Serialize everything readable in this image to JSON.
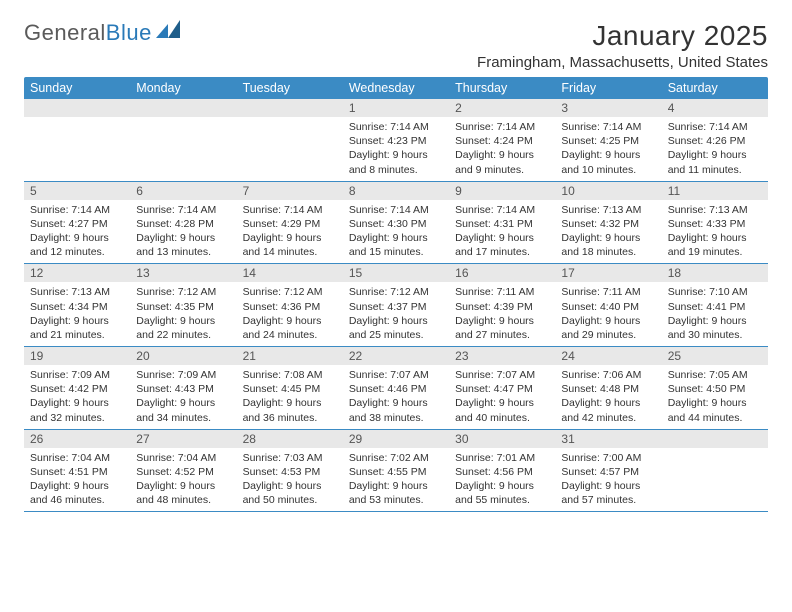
{
  "brand": {
    "part1": "General",
    "part2": "Blue"
  },
  "title": "January 2025",
  "location": "Framingham, Massachusetts, United States",
  "colors": {
    "header_bg": "#3b8bc4",
    "header_fg": "#ffffff",
    "daynum_bg": "#e8e8e8",
    "rule": "#3b8bc4",
    "text": "#333333",
    "logo_gray": "#5a5a5a",
    "logo_blue": "#2a7ab8"
  },
  "day_names": [
    "Sunday",
    "Monday",
    "Tuesday",
    "Wednesday",
    "Thursday",
    "Friday",
    "Saturday"
  ],
  "weeks": [
    [
      {
        "n": "",
        "empty": true
      },
      {
        "n": "",
        "empty": true
      },
      {
        "n": "",
        "empty": true
      },
      {
        "n": "1",
        "sr": "Sunrise: 7:14 AM",
        "ss": "Sunset: 4:23 PM",
        "dl1": "Daylight: 9 hours",
        "dl2": "and 8 minutes."
      },
      {
        "n": "2",
        "sr": "Sunrise: 7:14 AM",
        "ss": "Sunset: 4:24 PM",
        "dl1": "Daylight: 9 hours",
        "dl2": "and 9 minutes."
      },
      {
        "n": "3",
        "sr": "Sunrise: 7:14 AM",
        "ss": "Sunset: 4:25 PM",
        "dl1": "Daylight: 9 hours",
        "dl2": "and 10 minutes."
      },
      {
        "n": "4",
        "sr": "Sunrise: 7:14 AM",
        "ss": "Sunset: 4:26 PM",
        "dl1": "Daylight: 9 hours",
        "dl2": "and 11 minutes."
      }
    ],
    [
      {
        "n": "5",
        "sr": "Sunrise: 7:14 AM",
        "ss": "Sunset: 4:27 PM",
        "dl1": "Daylight: 9 hours",
        "dl2": "and 12 minutes."
      },
      {
        "n": "6",
        "sr": "Sunrise: 7:14 AM",
        "ss": "Sunset: 4:28 PM",
        "dl1": "Daylight: 9 hours",
        "dl2": "and 13 minutes."
      },
      {
        "n": "7",
        "sr": "Sunrise: 7:14 AM",
        "ss": "Sunset: 4:29 PM",
        "dl1": "Daylight: 9 hours",
        "dl2": "and 14 minutes."
      },
      {
        "n": "8",
        "sr": "Sunrise: 7:14 AM",
        "ss": "Sunset: 4:30 PM",
        "dl1": "Daylight: 9 hours",
        "dl2": "and 15 minutes."
      },
      {
        "n": "9",
        "sr": "Sunrise: 7:14 AM",
        "ss": "Sunset: 4:31 PM",
        "dl1": "Daylight: 9 hours",
        "dl2": "and 17 minutes."
      },
      {
        "n": "10",
        "sr": "Sunrise: 7:13 AM",
        "ss": "Sunset: 4:32 PM",
        "dl1": "Daylight: 9 hours",
        "dl2": "and 18 minutes."
      },
      {
        "n": "11",
        "sr": "Sunrise: 7:13 AM",
        "ss": "Sunset: 4:33 PM",
        "dl1": "Daylight: 9 hours",
        "dl2": "and 19 minutes."
      }
    ],
    [
      {
        "n": "12",
        "sr": "Sunrise: 7:13 AM",
        "ss": "Sunset: 4:34 PM",
        "dl1": "Daylight: 9 hours",
        "dl2": "and 21 minutes."
      },
      {
        "n": "13",
        "sr": "Sunrise: 7:12 AM",
        "ss": "Sunset: 4:35 PM",
        "dl1": "Daylight: 9 hours",
        "dl2": "and 22 minutes."
      },
      {
        "n": "14",
        "sr": "Sunrise: 7:12 AM",
        "ss": "Sunset: 4:36 PM",
        "dl1": "Daylight: 9 hours",
        "dl2": "and 24 minutes."
      },
      {
        "n": "15",
        "sr": "Sunrise: 7:12 AM",
        "ss": "Sunset: 4:37 PM",
        "dl1": "Daylight: 9 hours",
        "dl2": "and 25 minutes."
      },
      {
        "n": "16",
        "sr": "Sunrise: 7:11 AM",
        "ss": "Sunset: 4:39 PM",
        "dl1": "Daylight: 9 hours",
        "dl2": "and 27 minutes."
      },
      {
        "n": "17",
        "sr": "Sunrise: 7:11 AM",
        "ss": "Sunset: 4:40 PM",
        "dl1": "Daylight: 9 hours",
        "dl2": "and 29 minutes."
      },
      {
        "n": "18",
        "sr": "Sunrise: 7:10 AM",
        "ss": "Sunset: 4:41 PM",
        "dl1": "Daylight: 9 hours",
        "dl2": "and 30 minutes."
      }
    ],
    [
      {
        "n": "19",
        "sr": "Sunrise: 7:09 AM",
        "ss": "Sunset: 4:42 PM",
        "dl1": "Daylight: 9 hours",
        "dl2": "and 32 minutes."
      },
      {
        "n": "20",
        "sr": "Sunrise: 7:09 AM",
        "ss": "Sunset: 4:43 PM",
        "dl1": "Daylight: 9 hours",
        "dl2": "and 34 minutes."
      },
      {
        "n": "21",
        "sr": "Sunrise: 7:08 AM",
        "ss": "Sunset: 4:45 PM",
        "dl1": "Daylight: 9 hours",
        "dl2": "and 36 minutes."
      },
      {
        "n": "22",
        "sr": "Sunrise: 7:07 AM",
        "ss": "Sunset: 4:46 PM",
        "dl1": "Daylight: 9 hours",
        "dl2": "and 38 minutes."
      },
      {
        "n": "23",
        "sr": "Sunrise: 7:07 AM",
        "ss": "Sunset: 4:47 PM",
        "dl1": "Daylight: 9 hours",
        "dl2": "and 40 minutes."
      },
      {
        "n": "24",
        "sr": "Sunrise: 7:06 AM",
        "ss": "Sunset: 4:48 PM",
        "dl1": "Daylight: 9 hours",
        "dl2": "and 42 minutes."
      },
      {
        "n": "25",
        "sr": "Sunrise: 7:05 AM",
        "ss": "Sunset: 4:50 PM",
        "dl1": "Daylight: 9 hours",
        "dl2": "and 44 minutes."
      }
    ],
    [
      {
        "n": "26",
        "sr": "Sunrise: 7:04 AM",
        "ss": "Sunset: 4:51 PM",
        "dl1": "Daylight: 9 hours",
        "dl2": "and 46 minutes."
      },
      {
        "n": "27",
        "sr": "Sunrise: 7:04 AM",
        "ss": "Sunset: 4:52 PM",
        "dl1": "Daylight: 9 hours",
        "dl2": "and 48 minutes."
      },
      {
        "n": "28",
        "sr": "Sunrise: 7:03 AM",
        "ss": "Sunset: 4:53 PM",
        "dl1": "Daylight: 9 hours",
        "dl2": "and 50 minutes."
      },
      {
        "n": "29",
        "sr": "Sunrise: 7:02 AM",
        "ss": "Sunset: 4:55 PM",
        "dl1": "Daylight: 9 hours",
        "dl2": "and 53 minutes."
      },
      {
        "n": "30",
        "sr": "Sunrise: 7:01 AM",
        "ss": "Sunset: 4:56 PM",
        "dl1": "Daylight: 9 hours",
        "dl2": "and 55 minutes."
      },
      {
        "n": "31",
        "sr": "Sunrise: 7:00 AM",
        "ss": "Sunset: 4:57 PM",
        "dl1": "Daylight: 9 hours",
        "dl2": "and 57 minutes."
      },
      {
        "n": "",
        "empty": true
      }
    ]
  ]
}
